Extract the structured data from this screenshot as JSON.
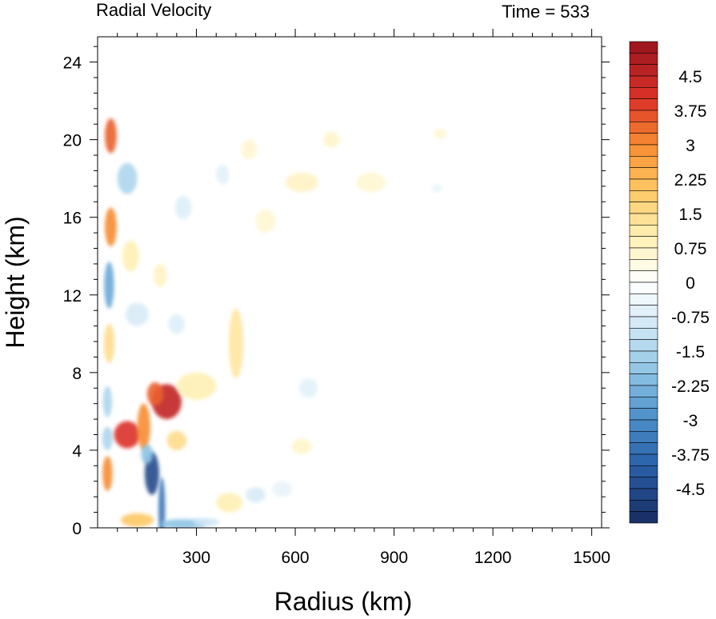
{
  "chart_data": {
    "type": "heatmap",
    "title": "Radial Velocity",
    "time_label": "Time = 533",
    "xlabel": "Radius (km)",
    "ylabel": "Height (km)",
    "xlim": [
      0,
      1530
    ],
    "ylim": [
      0,
      25.3
    ],
    "x_ticks": [
      300,
      600,
      900,
      1200,
      1500
    ],
    "x_tick_labels": [
      "300",
      "600",
      "900",
      "1200",
      "1500"
    ],
    "y_ticks": [
      0,
      4,
      8,
      12,
      16,
      20,
      24
    ],
    "y_tick_labels": [
      "0",
      "4",
      "8",
      "12",
      "16",
      "20",
      "24"
    ],
    "colorbar": {
      "min": -5.25,
      "max": 5.25,
      "step": 0.25,
      "labels": [
        "4.5",
        "3.75",
        "3",
        "2.25",
        "1.5",
        "0.75",
        "0",
        "-0.75",
        "-1.5",
        "-2.25",
        "-3",
        "-3.75",
        "-4.5"
      ],
      "label_values": [
        4.5,
        3.75,
        3,
        2.25,
        1.5,
        0.75,
        0,
        -0.75,
        -1.5,
        -2.25,
        -3,
        -3.75,
        -4.5
      ]
    },
    "features": [
      {
        "r": 40,
        "z": 20.2,
        "dr": 18,
        "dz": 0.9,
        "v": 3.5
      },
      {
        "r": 40,
        "z": 15.5,
        "dr": 18,
        "dz": 1.0,
        "v": 3.0
      },
      {
        "r": 35,
        "z": 12.5,
        "dr": 15,
        "dz": 1.2,
        "v": -2.5
      },
      {
        "r": 35,
        "z": 9.5,
        "dr": 16,
        "dz": 1.0,
        "v": 1.5
      },
      {
        "r": 30,
        "z": 6.5,
        "dr": 14,
        "dz": 0.8,
        "v": -1.5
      },
      {
        "r": 30,
        "z": 2.8,
        "dr": 15,
        "dz": 0.9,
        "v": 3.0
      },
      {
        "r": 30,
        "z": 4.6,
        "dr": 16,
        "dz": 0.6,
        "v": -1.5
      },
      {
        "r": 90,
        "z": 4.8,
        "dr": 40,
        "dz": 0.7,
        "v": 4.0
      },
      {
        "r": 140,
        "z": 5.2,
        "dr": 20,
        "dz": 1.2,
        "v": 3.0
      },
      {
        "r": 210,
        "z": 6.5,
        "dr": 45,
        "dz": 0.9,
        "v": 4.5
      },
      {
        "r": 175,
        "z": 6.9,
        "dr": 25,
        "dz": 0.6,
        "v": 3.5
      },
      {
        "r": 165,
        "z": 2.8,
        "dr": 22,
        "dz": 1.1,
        "v": -4.5
      },
      {
        "r": 150,
        "z": 3.8,
        "dr": 18,
        "dz": 0.5,
        "v": -2.0
      },
      {
        "r": 195,
        "z": 1.0,
        "dr": 10,
        "dz": 1.6,
        "v": -3.5
      },
      {
        "r": 260,
        "z": 0.2,
        "dr": 70,
        "dz": 0.25,
        "v": -2.0
      },
      {
        "r": 120,
        "z": 0.4,
        "dr": 50,
        "dz": 0.35,
        "v": 2.0
      },
      {
        "r": 330,
        "z": 0.3,
        "dr": 40,
        "dz": 0.2,
        "v": -1.0
      },
      {
        "r": 420,
        "z": 9.5,
        "dr": 22,
        "dz": 1.8,
        "v": 1.25
      },
      {
        "r": 300,
        "z": 7.3,
        "dr": 60,
        "dz": 0.7,
        "v": 1.0
      },
      {
        "r": 240,
        "z": 4.5,
        "dr": 30,
        "dz": 0.5,
        "v": 1.5
      },
      {
        "r": 400,
        "z": 1.3,
        "dr": 40,
        "dz": 0.5,
        "v": 1.0
      },
      {
        "r": 480,
        "z": 1.7,
        "dr": 30,
        "dz": 0.4,
        "v": -0.8
      },
      {
        "r": 640,
        "z": 7.2,
        "dr": 28,
        "dz": 0.5,
        "v": -0.6
      },
      {
        "r": 620,
        "z": 4.2,
        "dr": 30,
        "dz": 0.4,
        "v": 0.7
      },
      {
        "r": 560,
        "z": 2.0,
        "dr": 30,
        "dz": 0.4,
        "v": -0.5
      },
      {
        "r": 710,
        "z": 20.0,
        "dr": 25,
        "dz": 0.4,
        "v": 0.7
      },
      {
        "r": 620,
        "z": 17.8,
        "dr": 50,
        "dz": 0.5,
        "v": 0.8
      },
      {
        "r": 830,
        "z": 17.8,
        "dr": 45,
        "dz": 0.5,
        "v": 0.6
      },
      {
        "r": 460,
        "z": 19.5,
        "dr": 25,
        "dz": 0.5,
        "v": 0.6
      },
      {
        "r": 510,
        "z": 15.8,
        "dr": 30,
        "dz": 0.6,
        "v": 0.6
      },
      {
        "r": 380,
        "z": 18.2,
        "dr": 20,
        "dz": 0.5,
        "v": -0.6
      },
      {
        "r": 260,
        "z": 16.5,
        "dr": 25,
        "dz": 0.6,
        "v": -0.7
      },
      {
        "r": 1040,
        "z": 20.3,
        "dr": 20,
        "dz": 0.25,
        "v": 0.6
      },
      {
        "r": 1030,
        "z": 17.5,
        "dr": 15,
        "dz": 0.2,
        "v": -0.5
      },
      {
        "r": 90,
        "z": 18.0,
        "dr": 30,
        "dz": 0.8,
        "v": -1.5
      },
      {
        "r": 100,
        "z": 14.0,
        "dr": 25,
        "dz": 0.8,
        "v": 1.0
      },
      {
        "r": 120,
        "z": 11.0,
        "dr": 35,
        "dz": 0.6,
        "v": -0.8
      },
      {
        "r": 190,
        "z": 13.0,
        "dr": 20,
        "dz": 0.6,
        "v": 0.8
      },
      {
        "r": 240,
        "z": 10.5,
        "dr": 25,
        "dz": 0.5,
        "v": -0.7
      }
    ]
  }
}
